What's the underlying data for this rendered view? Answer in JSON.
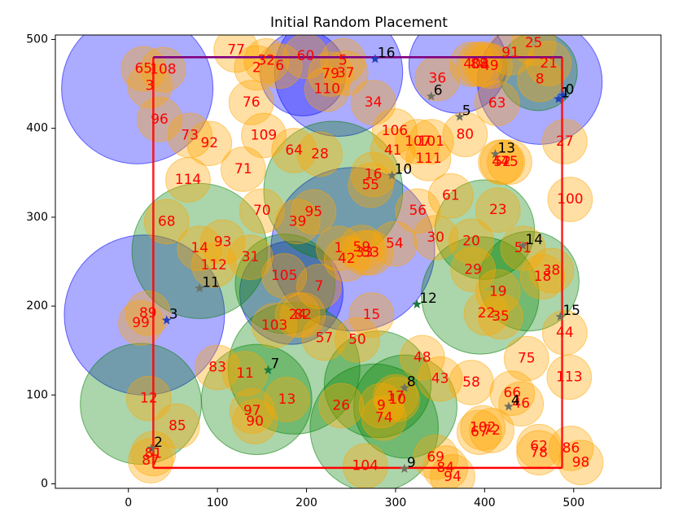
{
  "chart_data": {
    "type": "scatter",
    "title": "Initial Random Placement",
    "xlabel": "",
    "ylabel": "",
    "xlim": [
      -82,
      598
    ],
    "ylim": [
      -5,
      505
    ],
    "x_ticks": [
      0,
      100,
      200,
      300,
      400,
      500
    ],
    "y_ticks": [
      0,
      100,
      200,
      300,
      400,
      500
    ],
    "grid": false,
    "legend": "none",
    "colors": {
      "blue": "#0000ff",
      "green": "#008000",
      "orange": "#ffa500",
      "boundary": "#ff0000",
      "boundary_top": "#800080",
      "star_blue": "#1f3fbf",
      "star_green": "#1a7a3a",
      "star_gray": "#707060",
      "label_red": "#ff0000",
      "label_black": "#000000"
    },
    "boundary_rect": {
      "x0": 28,
      "y0": 18,
      "x1": 487,
      "y1": 480
    },
    "anchors": [
      {
        "label": "0",
        "x": 488,
        "y": 437,
        "star": "blue"
      },
      {
        "label": "1",
        "x": 483,
        "y": 433,
        "star": "blue"
      },
      {
        "label": "2",
        "x": 26,
        "y": 40,
        "star": "gray"
      },
      {
        "label": "3",
        "x": 43,
        "y": 184,
        "star": "blue"
      },
      {
        "label": "4",
        "x": 427,
        "y": 87,
        "star": "gray"
      },
      {
        "label": "5",
        "x": 372,
        "y": 413,
        "star": "gray"
      },
      {
        "label": "6",
        "x": 340,
        "y": 436,
        "star": "gray"
      },
      {
        "label": "7",
        "x": 157,
        "y": 128,
        "star": "green"
      },
      {
        "label": "8",
        "x": 310,
        "y": 108,
        "star": "gray"
      },
      {
        "label": "9",
        "x": 310,
        "y": 17,
        "star": "gray"
      },
      {
        "label": "10",
        "x": 296,
        "y": 347,
        "star": "gray"
      },
      {
        "label": "11",
        "x": 80,
        "y": 220,
        "star": "gray"
      },
      {
        "label": "12",
        "x": 324,
        "y": 202,
        "star": "green"
      },
      {
        "label": "13",
        "x": 412,
        "y": 371,
        "star": "gray"
      },
      {
        "label": "14",
        "x": 443,
        "y": 268,
        "star": "gray"
      },
      {
        "label": "15",
        "x": 485,
        "y": 188,
        "star": "gray"
      },
      {
        "label": "16",
        "x": 277,
        "y": 478,
        "star": "blue"
      }
    ],
    "blue_circles": [
      {
        "x": 10,
        "y": 445,
        "r": 85
      },
      {
        "x": 236,
        "y": 463,
        "r": 72
      },
      {
        "x": 196,
        "y": 462,
        "r": 48
      },
      {
        "x": 370,
        "y": 472,
        "r": 55
      },
      {
        "x": 462,
        "y": 452,
        "r": 70
      },
      {
        "x": 18,
        "y": 190,
        "r": 90
      },
      {
        "x": 183,
        "y": 215,
        "r": 58
      },
      {
        "x": 252,
        "y": 264,
        "r": 92
      }
    ],
    "green_circles": [
      {
        "x": 460,
        "y": 464,
        "r": 44
      },
      {
        "x": 400,
        "y": 286,
        "r": 56
      },
      {
        "x": 450,
        "y": 228,
        "r": 56
      },
      {
        "x": 395,
        "y": 212,
        "r": 66
      },
      {
        "x": 80,
        "y": 262,
        "r": 76
      },
      {
        "x": 230,
        "y": 330,
        "r": 78
      },
      {
        "x": 176,
        "y": 225,
        "r": 56
      },
      {
        "x": 186,
        "y": 130,
        "r": 74
      },
      {
        "x": 144,
        "y": 95,
        "r": 62
      },
      {
        "x": 14,
        "y": 90,
        "r": 68
      },
      {
        "x": 280,
        "y": 112,
        "r": 60
      },
      {
        "x": 311,
        "y": 87,
        "r": 58
      },
      {
        "x": 276,
        "y": 63,
        "r": 72
      }
    ],
    "orange_circles": [
      {
        "label": "1",
        "x": 236,
        "y": 265,
        "r": 25
      },
      {
        "label": "2",
        "x": 144,
        "y": 468,
        "r": 25
      },
      {
        "label": "3",
        "x": 24,
        "y": 448,
        "r": 25
      },
      {
        "label": "4",
        "x": 400,
        "y": 472,
        "r": 25
      },
      {
        "label": "5",
        "x": 241,
        "y": 476,
        "r": 25
      },
      {
        "label": "6",
        "x": 170,
        "y": 470,
        "r": 25
      },
      {
        "label": "7",
        "x": 214,
        "y": 222,
        "r": 25
      },
      {
        "label": "8",
        "x": 462,
        "y": 455,
        "r": 25
      },
      {
        "label": "9",
        "x": 284,
        "y": 88,
        "r": 25
      },
      {
        "label": "10",
        "x": 302,
        "y": 95,
        "r": 25
      },
      {
        "label": "11",
        "x": 131,
        "y": 124,
        "r": 25
      },
      {
        "label": "12",
        "x": 23,
        "y": 96,
        "r": 25
      },
      {
        "label": "13",
        "x": 178,
        "y": 95,
        "r": 25
      },
      {
        "label": "14",
        "x": 80,
        "y": 265,
        "r": 25
      },
      {
        "label": "15",
        "x": 273,
        "y": 190,
        "r": 25
      },
      {
        "label": "16",
        "x": 275,
        "y": 348,
        "r": 25
      },
      {
        "label": "17",
        "x": 300,
        "y": 98,
        "r": 25
      },
      {
        "label": "18",
        "x": 465,
        "y": 233,
        "r": 25
      },
      {
        "label": "19",
        "x": 415,
        "y": 216,
        "r": 25
      },
      {
        "label": "20",
        "x": 385,
        "y": 273,
        "r": 25
      },
      {
        "label": "21",
        "x": 472,
        "y": 473,
        "r": 25
      },
      {
        "label": "22",
        "x": 402,
        "y": 192,
        "r": 25
      },
      {
        "label": "23",
        "x": 415,
        "y": 308,
        "r": 25
      },
      {
        "label": "24",
        "x": 190,
        "y": 190,
        "r": 25
      },
      {
        "label": "25",
        "x": 455,
        "y": 496,
        "r": 25
      },
      {
        "label": "26",
        "x": 239,
        "y": 88,
        "r": 25
      },
      {
        "label": "27",
        "x": 490,
        "y": 385,
        "r": 25
      },
      {
        "label": "28",
        "x": 215,
        "y": 371,
        "r": 25
      },
      {
        "label": "29",
        "x": 387,
        "y": 241,
        "r": 25
      },
      {
        "label": "30",
        "x": 345,
        "y": 277,
        "r": 25
      },
      {
        "label": "31",
        "x": 137,
        "y": 255,
        "r": 25
      },
      {
        "label": "32",
        "x": 155,
        "y": 476,
        "r": 25
      },
      {
        "label": "33",
        "x": 265,
        "y": 260,
        "r": 25
      },
      {
        "label": "34",
        "x": 275,
        "y": 429,
        "r": 25
      },
      {
        "label": "35",
        "x": 418,
        "y": 188,
        "r": 25
      },
      {
        "label": "36",
        "x": 347,
        "y": 456,
        "r": 25
      },
      {
        "label": "37",
        "x": 244,
        "y": 462,
        "r": 25
      },
      {
        "label": "38",
        "x": 475,
        "y": 240,
        "r": 25
      },
      {
        "label": "39",
        "x": 190,
        "y": 295,
        "r": 25
      },
      {
        "label": "40",
        "x": 386,
        "y": 472,
        "r": 25
      },
      {
        "label": "41",
        "x": 297,
        "y": 375,
        "r": 25
      },
      {
        "label": "42",
        "x": 245,
        "y": 253,
        "r": 25
      },
      {
        "label": "43",
        "x": 350,
        "y": 118,
        "r": 25
      },
      {
        "label": "44",
        "x": 490,
        "y": 170,
        "r": 25
      },
      {
        "label": "45",
        "x": 428,
        "y": 362,
        "r": 25
      },
      {
        "label": "46",
        "x": 441,
        "y": 90,
        "r": 25
      },
      {
        "label": "47",
        "x": 418,
        "y": 362,
        "r": 25
      },
      {
        "label": "48",
        "x": 330,
        "y": 142,
        "r": 25
      },
      {
        "label": "49",
        "x": 406,
        "y": 470,
        "r": 25
      },
      {
        "label": "50",
        "x": 257,
        "y": 162,
        "r": 25
      },
      {
        "label": "51",
        "x": 443,
        "y": 265,
        "r": 25
      },
      {
        "label": "52",
        "x": 420,
        "y": 362,
        "r": 25
      },
      {
        "label": "53",
        "x": 272,
        "y": 260,
        "r": 25
      },
      {
        "label": "54",
        "x": 299,
        "y": 270,
        "r": 25
      },
      {
        "label": "55",
        "x": 272,
        "y": 336,
        "r": 25
      },
      {
        "label": "56",
        "x": 325,
        "y": 307,
        "r": 25
      },
      {
        "label": "57",
        "x": 220,
        "y": 164,
        "r": 25
      },
      {
        "label": "58",
        "x": 385,
        "y": 114,
        "r": 25
      },
      {
        "label": "59",
        "x": 262,
        "y": 266,
        "r": 25
      },
      {
        "label": "60",
        "x": 199,
        "y": 481,
        "r": 25
      },
      {
        "label": "61",
        "x": 362,
        "y": 324,
        "r": 25
      },
      {
        "label": "62",
        "x": 461,
        "y": 42,
        "r": 25
      },
      {
        "label": "63",
        "x": 414,
        "y": 428,
        "r": 25
      },
      {
        "label": "64",
        "x": 186,
        "y": 375,
        "r": 25
      },
      {
        "label": "65",
        "x": 17,
        "y": 467,
        "r": 25
      },
      {
        "label": "66",
        "x": 431,
        "y": 102,
        "r": 25
      },
      {
        "label": "67",
        "x": 394,
        "y": 58,
        "r": 25
      },
      {
        "label": "68",
        "x": 43,
        "y": 295,
        "r": 25
      },
      {
        "label": "69",
        "x": 345,
        "y": 30,
        "r": 25
      },
      {
        "label": "70",
        "x": 150,
        "y": 307,
        "r": 25
      },
      {
        "label": "71",
        "x": 129,
        "y": 354,
        "r": 25
      },
      {
        "label": "72",
        "x": 408,
        "y": 60,
        "r": 25
      },
      {
        "label": "73",
        "x": 69,
        "y": 392,
        "r": 25
      },
      {
        "label": "74",
        "x": 287,
        "y": 74,
        "r": 25
      },
      {
        "label": "75",
        "x": 447,
        "y": 141,
        "r": 25
      },
      {
        "label": "76",
        "x": 138,
        "y": 429,
        "r": 25
      },
      {
        "label": "77",
        "x": 121,
        "y": 488,
        "r": 25
      },
      {
        "label": "78",
        "x": 461,
        "y": 35,
        "r": 25
      },
      {
        "label": "79",
        "x": 227,
        "y": 461,
        "r": 25
      },
      {
        "label": "80",
        "x": 378,
        "y": 393,
        "r": 25
      },
      {
        "label": "81",
        "x": 28,
        "y": 34,
        "r": 25
      },
      {
        "label": "82",
        "x": 196,
        "y": 190,
        "r": 25
      },
      {
        "label": "83",
        "x": 100,
        "y": 131,
        "r": 25
      },
      {
        "label": "84",
        "x": 356,
        "y": 18,
        "r": 25
      },
      {
        "label": "85",
        "x": 55,
        "y": 65,
        "r": 25
      },
      {
        "label": "86",
        "x": 497,
        "y": 40,
        "r": 25
      },
      {
        "label": "87",
        "x": 25,
        "y": 26,
        "r": 25
      },
      {
        "label": "88",
        "x": 394,
        "y": 472,
        "r": 25
      },
      {
        "label": "89",
        "x": 22,
        "y": 192,
        "r": 25
      },
      {
        "label": "90",
        "x": 142,
        "y": 70,
        "r": 25
      },
      {
        "label": "91",
        "x": 429,
        "y": 485,
        "r": 25
      },
      {
        "label": "92",
        "x": 91,
        "y": 383,
        "r": 25
      },
      {
        "label": "93",
        "x": 106,
        "y": 272,
        "r": 25
      },
      {
        "label": "94",
        "x": 364,
        "y": 8,
        "r": 25
      },
      {
        "label": "95",
        "x": 208,
        "y": 306,
        "r": 25
      },
      {
        "label": "96",
        "x": 35,
        "y": 410,
        "r": 25
      },
      {
        "label": "97",
        "x": 139,
        "y": 82,
        "r": 25
      },
      {
        "label": "98",
        "x": 508,
        "y": 24,
        "r": 25
      },
      {
        "label": "99",
        "x": 14,
        "y": 181,
        "r": 25
      },
      {
        "label": "100",
        "x": 496,
        "y": 320,
        "r": 25
      },
      {
        "label": "101",
        "x": 340,
        "y": 385,
        "r": 25
      },
      {
        "label": "102",
        "x": 398,
        "y": 63,
        "r": 25
      },
      {
        "label": "103",
        "x": 164,
        "y": 178,
        "r": 25
      },
      {
        "label": "104",
        "x": 266,
        "y": 20,
        "r": 25
      },
      {
        "label": "105",
        "x": 175,
        "y": 234,
        "r": 25
      },
      {
        "label": "106",
        "x": 299,
        "y": 397,
        "r": 25
      },
      {
        "label": "107",
        "x": 325,
        "y": 385,
        "r": 25
      },
      {
        "label": "108",
        "x": 39,
        "y": 466,
        "r": 25
      },
      {
        "label": "109",
        "x": 152,
        "y": 392,
        "r": 25
      },
      {
        "label": "110",
        "x": 223,
        "y": 444,
        "r": 25
      },
      {
        "label": "111",
        "x": 337,
        "y": 366,
        "r": 25
      },
      {
        "label": "112",
        "x": 96,
        "y": 246,
        "r": 25
      },
      {
        "label": "113",
        "x": 495,
        "y": 120,
        "r": 25
      },
      {
        "label": "114",
        "x": 67,
        "y": 342,
        "r": 25
      }
    ]
  }
}
